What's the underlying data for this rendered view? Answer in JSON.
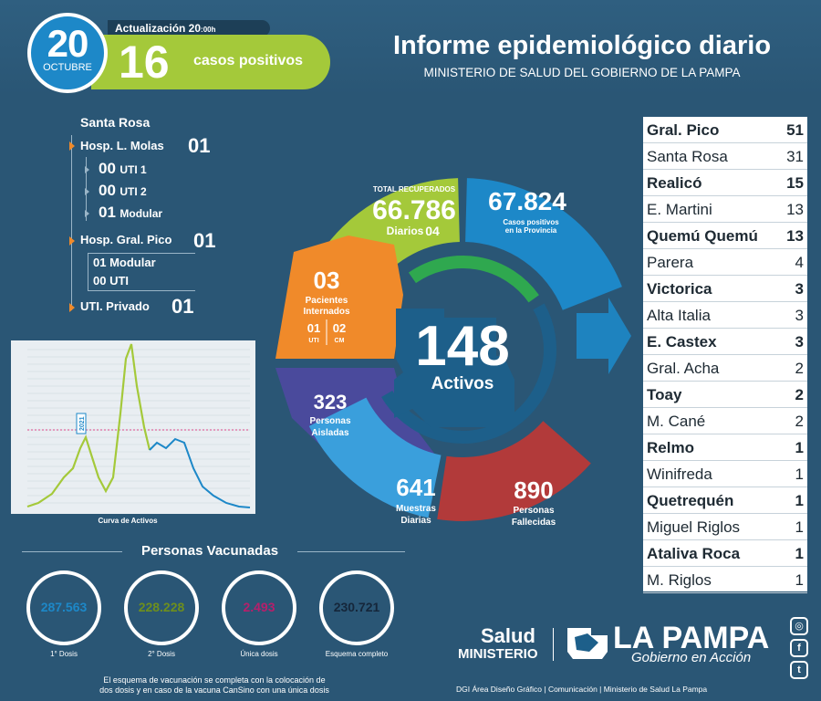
{
  "header": {
    "day": "20",
    "month": "OCTUBRE",
    "update_label": "Actualización 20",
    "update_time": ":00h",
    "cases_number": "16",
    "cases_label": "casos positivos",
    "title": "Informe epidemiológico diario",
    "subtitle": "MINISTERIO DE SALUD DEL GOBIERNO DE LA PAMPA"
  },
  "hospitals": {
    "santa_rosa_label": "Santa Rosa",
    "molas": {
      "label": "Hosp. L. Molas",
      "value": "01",
      "items": [
        {
          "value": "00",
          "label": "UTI 1"
        },
        {
          "value": "00",
          "label": "UTI 2"
        },
        {
          "value": "01",
          "label": "Modular"
        }
      ]
    },
    "gral_pico": {
      "label": "Hosp. Gral. Pico",
      "value": "01",
      "items": [
        {
          "value": "01",
          "label": "Modular"
        },
        {
          "value": "00",
          "label": "UTI"
        }
      ]
    },
    "privado": {
      "label": "UTI. Privado",
      "value": "01"
    }
  },
  "chart": {
    "caption": "Curva de Activos",
    "annotation": "2021",
    "marker_color": "#e0468a",
    "line_colors": [
      "#a4c93a",
      "#1d88c8"
    ]
  },
  "ring": {
    "recovered": {
      "title": "TOTAL RECUPERADOS",
      "value": "66.786",
      "daily_label": "Diarios",
      "daily_value": "04",
      "color": "#a4c93a"
    },
    "province": {
      "value": "67.824",
      "label1": "Casos positivos",
      "label2": "en la Provincia",
      "color": "#1d88c8"
    },
    "interned": {
      "value": "03",
      "label1": "Pacientes",
      "label2": "Internados",
      "uti_value": "01",
      "uti_label": "UTI",
      "cm_value": "02",
      "cm_label": "CM",
      "color": "#f08a2a"
    },
    "active": {
      "value": "148",
      "label": "Activos"
    },
    "isolated": {
      "value": "323",
      "label1": "Personas",
      "label2": "Aisladas",
      "color": "#4a4a9c"
    },
    "samples": {
      "value": "641",
      "label1": "Muestras",
      "label2": "Diarias",
      "color": "#3a9fdc"
    },
    "deceased": {
      "value": "890",
      "label1": "Personas",
      "label2": "Fallecidas",
      "color": "#b23a3a"
    }
  },
  "vaccines": {
    "title": "Personas Vacunadas",
    "items": [
      {
        "value": "287.563",
        "caption": "1° Dosis",
        "color": "#3aaee0"
      },
      {
        "value": "228.228",
        "caption": "2° Dosis",
        "color": "#a4c93a"
      },
      {
        "value": "2.493",
        "caption": "Única dosis",
        "color": "#d9287f"
      },
      {
        "value": "230.721",
        "caption": "Esquema completo",
        "color": "#15263a"
      }
    ],
    "note1": "El esquema de vacunación se completa con la colocación de",
    "note2": "dos dosis y en caso de la vacuna CanSino con una única dosis"
  },
  "localities": [
    {
      "name": "Gral. Pico",
      "value": "51",
      "bold": true
    },
    {
      "name": "Santa Rosa",
      "value": "31",
      "bold": false
    },
    {
      "name": "Realicó",
      "value": "15",
      "bold": true
    },
    {
      "name": "E. Martini",
      "value": "13",
      "bold": false
    },
    {
      "name": "Quemú Quemú",
      "value": "13",
      "bold": true
    },
    {
      "name": "Parera",
      "value": "4",
      "bold": false
    },
    {
      "name": "Victorica",
      "value": "3",
      "bold": true
    },
    {
      "name": "Alta Italia",
      "value": "3",
      "bold": false
    },
    {
      "name": "E. Castex",
      "value": "3",
      "bold": true
    },
    {
      "name": "Gral. Acha",
      "value": "2",
      "bold": false
    },
    {
      "name": "Toay",
      "value": "2",
      "bold": true
    },
    {
      "name": "M. Cané",
      "value": "2",
      "bold": false
    },
    {
      "name": "Relmo",
      "value": "1",
      "bold": true
    },
    {
      "name": "Winifreda",
      "value": "1",
      "bold": false
    },
    {
      "name": "Quetrequén",
      "value": "1",
      "bold": true
    },
    {
      "name": "Miguel Riglos",
      "value": "1",
      "bold": false
    },
    {
      "name": "Ataliva Roca",
      "value": "1",
      "bold": true
    },
    {
      "name": "M. Riglos",
      "value": "1",
      "bold": false
    }
  ],
  "footer": {
    "salud": "Salud",
    "ministerio": "MINISTERIO",
    "lapampa": "LA PAMPA",
    "gobierno": "Gobierno en Acción",
    "credits": "DGI Área Diseño Gráfico  | Comunicación  | Ministerio de Salud La Pampa",
    "social_icons": [
      "instagram-icon",
      "facebook-icon",
      "twitter-icon"
    ],
    "social_glyphs": [
      "◎",
      "f",
      "t"
    ]
  }
}
